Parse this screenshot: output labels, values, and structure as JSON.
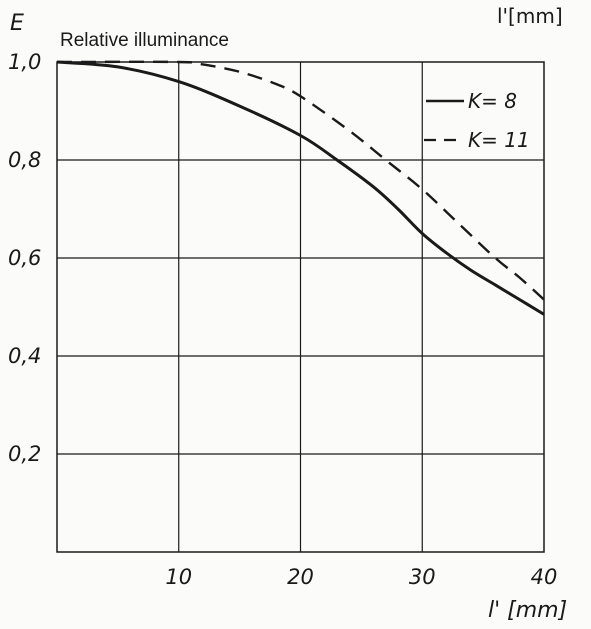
{
  "chart_data": {
    "type": "line",
    "title": "Relative illuminance",
    "ylabel": "E",
    "xlabel": "l' [mm]",
    "top_unit_label": "l'[mm]",
    "xlim": [
      0,
      40
    ],
    "ylim": [
      0,
      1.0
    ],
    "x_ticks": [
      {
        "value": 10,
        "label": "10"
      },
      {
        "value": 20,
        "label": "20"
      },
      {
        "value": 30,
        "label": "30"
      },
      {
        "value": 40,
        "label": "40"
      }
    ],
    "y_ticks": [
      {
        "value": 0.2,
        "label": "0,2"
      },
      {
        "value": 0.4,
        "label": "0,4"
      },
      {
        "value": 0.6,
        "label": "0,6"
      },
      {
        "value": 0.8,
        "label": "0,8"
      },
      {
        "value": 1.0,
        "label": "1,0"
      }
    ],
    "grid": true,
    "legend_position": "top-right",
    "series": [
      {
        "name": "K= 8",
        "style": "solid",
        "x": [
          0,
          5,
          10,
          15,
          20,
          23,
          26,
          28,
          30,
          32,
          34,
          36,
          38,
          40
        ],
        "y": [
          1.0,
          0.99,
          0.96,
          0.91,
          0.85,
          0.8,
          0.745,
          0.7,
          0.65,
          0.61,
          0.575,
          0.545,
          0.515,
          0.485
        ]
      },
      {
        "name": "K= 11",
        "style": "dashed",
        "x": [
          0,
          10,
          12,
          15,
          18,
          20,
          24,
          27,
          30,
          33,
          36,
          38,
          40
        ],
        "y": [
          1.0,
          1.0,
          0.995,
          0.98,
          0.955,
          0.93,
          0.86,
          0.8,
          0.74,
          0.67,
          0.6,
          0.56,
          0.515
        ]
      }
    ]
  }
}
